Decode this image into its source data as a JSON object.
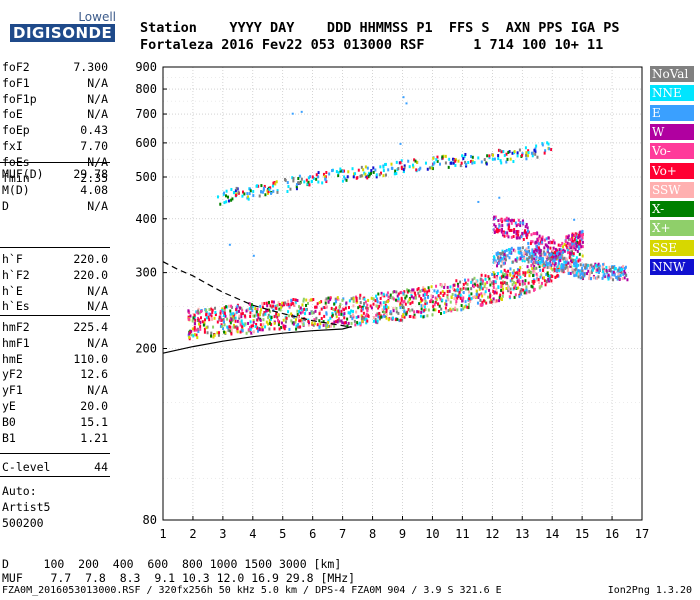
{
  "logo": {
    "top": "Lowell",
    "main": "DIGISONDE"
  },
  "header": {
    "line1": "Station    YYYY DAY    DDD HHMMSS P1  FFS S  AXN PPS IGA PS",
    "line2": "Fortaleza 2016 Fev22 053 013000 RSF      1 714 100 10+ 11"
  },
  "params_group1": [
    {
      "name": "foF2",
      "value": "7.300"
    },
    {
      "name": "foF1",
      "value": "N/A"
    },
    {
      "name": "foF1p",
      "value": "N/A"
    },
    {
      "name": "foE",
      "value": "N/A"
    },
    {
      "name": "foEp",
      "value": "0.43"
    },
    {
      "name": "fxI",
      "value": "7.70"
    },
    {
      "name": "foEs",
      "value": "N/A"
    },
    {
      "name": "fmin",
      "value": "2.35"
    }
  ],
  "params_group2": [
    {
      "name": "MUF(D)",
      "value": "29.78"
    },
    {
      "name": "M(D)",
      "value": "4.08"
    },
    {
      "name": "D",
      "value": "N/A"
    }
  ],
  "params_group3": [
    {
      "name": "h`F",
      "value": "220.0"
    },
    {
      "name": "h`F2",
      "value": "220.0"
    },
    {
      "name": "h`E",
      "value": "N/A"
    },
    {
      "name": "h`Es",
      "value": "N/A"
    }
  ],
  "params_group4": [
    {
      "name": "hmF2",
      "value": "225.4"
    },
    {
      "name": "hmF1",
      "value": "N/A"
    },
    {
      "name": "hmE",
      "value": "110.0"
    },
    {
      "name": "yF2",
      "value": "12.6"
    },
    {
      "name": "yF1",
      "value": "N/A"
    },
    {
      "name": "yE",
      "value": "20.0"
    },
    {
      "name": "B0",
      "value": "15.1"
    },
    {
      "name": "B1",
      "value": "1.21"
    }
  ],
  "clevel": {
    "name": "C-level",
    "value": "44"
  },
  "autoscale": {
    "line1": "Auto:",
    "line2": "Artist5",
    "line3": "500200"
  },
  "legend": [
    {
      "label": "NoVal",
      "color": "#808080",
      "text": "#ffffff"
    },
    {
      "label": "NNE",
      "color": "#00e5ff",
      "text": "#ffffff"
    },
    {
      "label": "E",
      "color": "#3aa0ff",
      "text": "#ffffff"
    },
    {
      "label": "W",
      "color": "#b000a0",
      "text": "#ffffff"
    },
    {
      "label": "Vo-",
      "color": "#ff3a9a",
      "text": "#ffffff"
    },
    {
      "label": "Vo+",
      "color": "#ff0033",
      "text": "#ffffff"
    },
    {
      "label": "SSW",
      "color": "#ffb0b0",
      "text": "#ffffff"
    },
    {
      "label": "X-",
      "color": "#008000",
      "text": "#ffffff"
    },
    {
      "label": "X+",
      "color": "#8fcf6a",
      "text": "#ffffff"
    },
    {
      "label": "SSE",
      "color": "#d7d700",
      "text": "#ffffff"
    },
    {
      "label": "NNW",
      "color": "#1010d0",
      "text": "#ffffff"
    }
  ],
  "bottom": {
    "d_line": "D     100  200  400  600  800 1000 1500 3000 [km]",
    "muf_line": "MUF    7.7  7.8  8.3  9.1 10.3 12.0 16.9 29.8 [MHz]",
    "footer": "FZA0M_2016053013000.RSF / 320fx256h 50 kHz 5.0 km / DPS-4 FZA0M 904 / 3.9 S 321.6 E",
    "version": "Ion2Png 1.3.20"
  },
  "chart_data": {
    "type": "scatter",
    "title": "",
    "xlabel": "",
    "ylabel": "",
    "xlim": [
      1,
      17
    ],
    "ylim": [
      80,
      900
    ],
    "y_scale": "log",
    "grid": true,
    "x_ticks": [
      1,
      2,
      3,
      4,
      5,
      6,
      7,
      8,
      9,
      10,
      11,
      12,
      13,
      14,
      15,
      16,
      17
    ],
    "y_ticks": [
      80,
      200,
      300,
      400,
      500,
      600,
      700,
      800,
      900
    ],
    "ordinary_trace": {
      "name": "Vo+",
      "points": [
        [
          1.8,
          230
        ],
        [
          2.5,
          232
        ],
        [
          3,
          234
        ],
        [
          3.5,
          236
        ],
        [
          4,
          238
        ],
        [
          4.5,
          240
        ],
        [
          5,
          242
        ],
        [
          5.5,
          243
        ],
        [
          6,
          244
        ],
        [
          6.5,
          245
        ],
        [
          7,
          247
        ],
        [
          7.5,
          248
        ],
        [
          8,
          250
        ],
        [
          8.5,
          252
        ],
        [
          9,
          255
        ],
        [
          9.5,
          258
        ],
        [
          10,
          262
        ],
        [
          10.5,
          266
        ],
        [
          11,
          270
        ],
        [
          11.5,
          275
        ],
        [
          12,
          280
        ],
        [
          12.5,
          285
        ],
        [
          13,
          290
        ],
        [
          13.5,
          300
        ],
        [
          14,
          315
        ],
        [
          14.5,
          335
        ],
        [
          15,
          355
        ]
      ]
    },
    "high_trace": {
      "name": "E",
      "points": [
        [
          12,
          320
        ],
        [
          12.5,
          330
        ],
        [
          13,
          335
        ],
        [
          13.5,
          330
        ],
        [
          14,
          320
        ],
        [
          14.5,
          312
        ],
        [
          15,
          305
        ],
        [
          15.5,
          305
        ],
        [
          16,
          303
        ],
        [
          16.5,
          302
        ]
      ]
    },
    "second_hop": {
      "name": "NNE",
      "points": [
        [
          2.8,
          450
        ],
        [
          3.5,
          460
        ],
        [
          4,
          465
        ],
        [
          4.5,
          470
        ],
        [
          5,
          480
        ],
        [
          5.5,
          490
        ],
        [
          6,
          500
        ],
        [
          6.5,
          505
        ],
        [
          7,
          510
        ],
        [
          7.5,
          515
        ],
        [
          8,
          520
        ],
        [
          8.5,
          528
        ],
        [
          9,
          535
        ],
        [
          10,
          545
        ],
        [
          11,
          550
        ],
        [
          12,
          560
        ],
        [
          13,
          570
        ],
        [
          13.5,
          580
        ],
        [
          14,
          590
        ]
      ]
    },
    "w_cluster": {
      "name": "W",
      "points": [
        [
          12,
          390
        ],
        [
          12.5,
          385
        ],
        [
          13,
          380
        ],
        [
          13.5,
          355
        ],
        [
          14,
          345
        ],
        [
          14.5,
          350
        ],
        [
          15,
          365
        ]
      ]
    },
    "profile_curve": {
      "points": [
        [
          1,
          195
        ],
        [
          2,
          202
        ],
        [
          3,
          208
        ],
        [
          4,
          213
        ],
        [
          5,
          217
        ],
        [
          6,
          220
        ],
        [
          7,
          222
        ],
        [
          7.3,
          225
        ]
      ]
    },
    "upper_curve": {
      "points": [
        [
          1,
          318
        ],
        [
          1.5,
          305
        ],
        [
          2,
          295
        ],
        [
          2.5,
          282
        ],
        [
          3,
          270
        ],
        [
          4,
          252
        ],
        [
          5,
          241
        ],
        [
          6,
          232
        ],
        [
          7,
          226
        ],
        [
          7.3,
          224
        ]
      ]
    }
  }
}
